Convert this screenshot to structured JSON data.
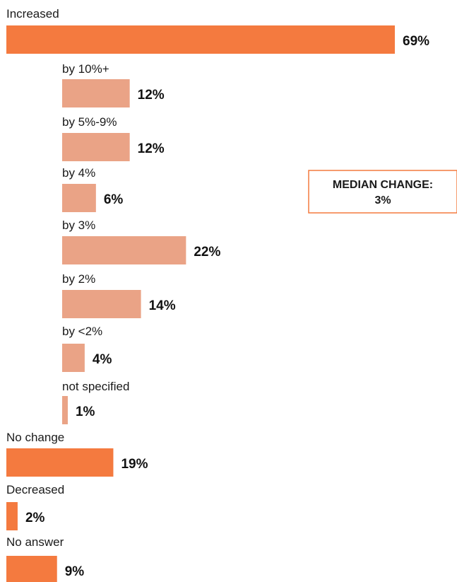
{
  "chart_data": {
    "type": "bar",
    "orientation": "horizontal",
    "categories": [
      "Increased",
      "by 10%+",
      "by 5%-9%",
      "by 4%",
      "by 3%",
      "by 2%",
      "by <2%",
      "not specified",
      "No change",
      "Decreased",
      "No answer"
    ],
    "values": [
      69,
      12,
      12,
      6,
      22,
      14,
      4,
      1,
      19,
      2,
      9
    ],
    "value_labels": [
      "69%",
      "12%",
      "12%",
      "6%",
      "22%",
      "14%",
      "4%",
      "1%",
      "19%",
      "2%",
      "9%"
    ],
    "levels": [
      0,
      1,
      1,
      1,
      1,
      1,
      1,
      1,
      0,
      0,
      0
    ],
    "colors": {
      "main": "#f47a3f",
      "sub": "#eaa386"
    },
    "annotation": {
      "line1": "MEDIAN CHANGE:",
      "line2": "3%"
    },
    "unit": "%",
    "grid": false,
    "legend": "none"
  }
}
